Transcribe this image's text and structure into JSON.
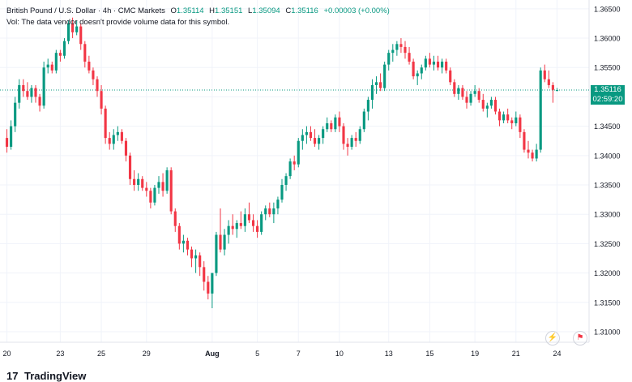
{
  "header": {
    "symbol": "British Pound / U.S. Dollar · 4h · CMC Markets",
    "ohlc": [
      {
        "key": "O",
        "value": "1.35114"
      },
      {
        "key": "H",
        "value": "1.35151"
      },
      {
        "key": "L",
        "value": "1.35094"
      },
      {
        "key": "C",
        "value": "1.35116"
      }
    ],
    "change": "+0.00003 (+0.00%)",
    "volume_note": "Vol: The data vendor doesn't provide volume data for this symbol."
  },
  "price_tag": {
    "price": "1.35116",
    "countdown": "02:59:20"
  },
  "logo": {
    "text": "TradingView",
    "mark": "17"
  },
  "colors": {
    "up": "#089981",
    "down": "#f23645",
    "grid": "#f0f3fa",
    "axis_text": "#131722"
  },
  "chart_data": {
    "type": "candlestick",
    "ylim": [
      1.3082,
      1.3665
    ],
    "yticks": [
      "1.36500",
      "1.36000",
      "1.35500",
      "1.35000",
      "1.34500",
      "1.34000",
      "1.33500",
      "1.33000",
      "1.32500",
      "1.32000",
      "1.31500",
      "1.31000"
    ],
    "xticks": [
      {
        "label": "20",
        "index": 0
      },
      {
        "label": "23",
        "index": 13
      },
      {
        "label": "25",
        "index": 23
      },
      {
        "label": "29",
        "index": 34
      },
      {
        "label": "Aug",
        "index": 50
      },
      {
        "label": "5",
        "index": 61
      },
      {
        "label": "7",
        "index": 71
      },
      {
        "label": "10",
        "index": 81
      },
      {
        "label": "13",
        "index": 93
      },
      {
        "label": "15",
        "index": 103
      },
      {
        "label": "19",
        "index": 114
      },
      {
        "label": "21",
        "index": 124
      },
      {
        "label": "24",
        "index": 134
      }
    ],
    "last_price": 1.35116,
    "candles": [
      [
        1.343,
        1.3445,
        1.3405,
        1.3415
      ],
      [
        1.3415,
        1.346,
        1.341,
        1.345
      ],
      [
        1.345,
        1.35,
        1.344,
        1.349
      ],
      [
        1.349,
        1.353,
        1.348,
        1.352
      ],
      [
        1.352,
        1.353,
        1.35,
        1.351
      ],
      [
        1.351,
        1.3525,
        1.3495,
        1.35
      ],
      [
        1.35,
        1.352,
        1.349,
        1.3515
      ],
      [
        1.3515,
        1.352,
        1.349,
        1.35
      ],
      [
        1.35,
        1.3505,
        1.3475,
        1.3485
      ],
      [
        1.3485,
        1.356,
        1.348,
        1.355
      ],
      [
        1.355,
        1.3565,
        1.354,
        1.3555
      ],
      [
        1.3555,
        1.356,
        1.354,
        1.3545
      ],
      [
        1.3545,
        1.358,
        1.354,
        1.3575
      ],
      [
        1.3575,
        1.358,
        1.356,
        1.357
      ],
      [
        1.357,
        1.36,
        1.3565,
        1.3595
      ],
      [
        1.3595,
        1.363,
        1.359,
        1.3625
      ],
      [
        1.3625,
        1.3635,
        1.36,
        1.361
      ],
      [
        1.361,
        1.363,
        1.3605,
        1.362
      ],
      [
        1.362,
        1.3625,
        1.358,
        1.359
      ],
      [
        1.359,
        1.3595,
        1.355,
        1.356
      ],
      [
        1.356,
        1.357,
        1.354,
        1.3545
      ],
      [
        1.3545,
        1.355,
        1.352,
        1.353
      ],
      [
        1.353,
        1.3535,
        1.35,
        1.351
      ],
      [
        1.351,
        1.352,
        1.347,
        1.348
      ],
      [
        1.348,
        1.3485,
        1.342,
        1.343
      ],
      [
        1.343,
        1.344,
        1.341,
        1.342
      ],
      [
        1.342,
        1.3445,
        1.341,
        1.3435
      ],
      [
        1.3435,
        1.345,
        1.3425,
        1.344
      ],
      [
        1.344,
        1.3445,
        1.342,
        1.3425
      ],
      [
        1.3425,
        1.343,
        1.339,
        1.34
      ],
      [
        1.34,
        1.3405,
        1.335,
        1.336
      ],
      [
        1.336,
        1.3375,
        1.334,
        1.335
      ],
      [
        1.335,
        1.337,
        1.334,
        1.336
      ],
      [
        1.336,
        1.3365,
        1.334,
        1.3345
      ],
      [
        1.3345,
        1.3355,
        1.333,
        1.334
      ],
      [
        1.334,
        1.3345,
        1.331,
        1.332
      ],
      [
        1.332,
        1.335,
        1.3315,
        1.3345
      ],
      [
        1.3345,
        1.3365,
        1.3335,
        1.3355
      ],
      [
        1.3355,
        1.337,
        1.333,
        1.334
      ],
      [
        1.334,
        1.338,
        1.3335,
        1.3375
      ],
      [
        1.3375,
        1.338,
        1.33,
        1.3305
      ],
      [
        1.3305,
        1.331,
        1.327,
        1.328
      ],
      [
        1.328,
        1.3285,
        1.324,
        1.325
      ],
      [
        1.325,
        1.3265,
        1.3235,
        1.3255
      ],
      [
        1.3255,
        1.326,
        1.323,
        1.324
      ],
      [
        1.324,
        1.3245,
        1.321,
        1.3225
      ],
      [
        1.3225,
        1.324,
        1.32,
        1.323
      ],
      [
        1.323,
        1.3235,
        1.3195,
        1.321
      ],
      [
        1.321,
        1.322,
        1.317,
        1.3185
      ],
      [
        1.3185,
        1.3195,
        1.3155,
        1.3165
      ],
      [
        1.3165,
        1.3195,
        1.314,
        1.32
      ],
      [
        1.32,
        1.327,
        1.3195,
        1.3265
      ],
      [
        1.3265,
        1.331,
        1.3235,
        1.324
      ],
      [
        1.324,
        1.3275,
        1.323,
        1.3265
      ],
      [
        1.3265,
        1.329,
        1.325,
        1.328
      ],
      [
        1.328,
        1.33,
        1.3265,
        1.3275
      ],
      [
        1.3275,
        1.329,
        1.326,
        1.3285
      ],
      [
        1.3285,
        1.3305,
        1.3275,
        1.328
      ],
      [
        1.328,
        1.331,
        1.327,
        1.33
      ],
      [
        1.33,
        1.332,
        1.3285,
        1.329
      ],
      [
        1.329,
        1.33,
        1.327,
        1.328
      ],
      [
        1.328,
        1.329,
        1.326,
        1.327
      ],
      [
        1.327,
        1.3305,
        1.3265,
        1.33
      ],
      [
        1.33,
        1.3315,
        1.329,
        1.331
      ],
      [
        1.331,
        1.332,
        1.3295,
        1.33
      ],
      [
        1.33,
        1.332,
        1.3285,
        1.331
      ],
      [
        1.331,
        1.333,
        1.33,
        1.3325
      ],
      [
        1.3325,
        1.336,
        1.332,
        1.335
      ],
      [
        1.335,
        1.337,
        1.334,
        1.3365
      ],
      [
        1.3365,
        1.3395,
        1.336,
        1.339
      ],
      [
        1.339,
        1.34,
        1.3375,
        1.3385
      ],
      [
        1.3385,
        1.343,
        1.338,
        1.3425
      ],
      [
        1.3425,
        1.3445,
        1.341,
        1.3435
      ],
      [
        1.3435,
        1.345,
        1.342,
        1.344
      ],
      [
        1.344,
        1.345,
        1.3425,
        1.343
      ],
      [
        1.343,
        1.3445,
        1.3415,
        1.342
      ],
      [
        1.342,
        1.3435,
        1.341,
        1.343
      ],
      [
        1.343,
        1.345,
        1.342,
        1.3445
      ],
      [
        1.3445,
        1.3465,
        1.344,
        1.3455
      ],
      [
        1.3455,
        1.346,
        1.344,
        1.3445
      ],
      [
        1.3445,
        1.347,
        1.344,
        1.3465
      ],
      [
        1.3465,
        1.3475,
        1.344,
        1.345
      ],
      [
        1.345,
        1.3455,
        1.341,
        1.342
      ],
      [
        1.342,
        1.343,
        1.34,
        1.3415
      ],
      [
        1.3415,
        1.3435,
        1.341,
        1.343
      ],
      [
        1.343,
        1.344,
        1.3415,
        1.3425
      ],
      [
        1.3425,
        1.345,
        1.342,
        1.3445
      ],
      [
        1.3445,
        1.348,
        1.344,
        1.3475
      ],
      [
        1.3475,
        1.35,
        1.346,
        1.3495
      ],
      [
        1.3495,
        1.353,
        1.348,
        1.352
      ],
      [
        1.352,
        1.3535,
        1.3505,
        1.3525
      ],
      [
        1.3525,
        1.354,
        1.351,
        1.3515
      ],
      [
        1.3515,
        1.356,
        1.351,
        1.3555
      ],
      [
        1.3555,
        1.358,
        1.3545,
        1.3575
      ],
      [
        1.3575,
        1.359,
        1.356,
        1.358
      ],
      [
        1.358,
        1.3595,
        1.357,
        1.359
      ],
      [
        1.359,
        1.36,
        1.3575,
        1.3585
      ],
      [
        1.3585,
        1.3595,
        1.3565,
        1.3575
      ],
      [
        1.3575,
        1.3585,
        1.3555,
        1.356
      ],
      [
        1.356,
        1.3565,
        1.353,
        1.3535
      ],
      [
        1.3535,
        1.3545,
        1.352,
        1.354
      ],
      [
        1.354,
        1.3555,
        1.353,
        1.355
      ],
      [
        1.355,
        1.357,
        1.3545,
        1.3565
      ],
      [
        1.3565,
        1.3575,
        1.355,
        1.3555
      ],
      [
        1.3555,
        1.357,
        1.3545,
        1.356
      ],
      [
        1.356,
        1.357,
        1.3545,
        1.355
      ],
      [
        1.355,
        1.3565,
        1.354,
        1.356
      ],
      [
        1.356,
        1.3565,
        1.354,
        1.3545
      ],
      [
        1.3545,
        1.355,
        1.352,
        1.3525
      ],
      [
        1.3525,
        1.353,
        1.35,
        1.3505
      ],
      [
        1.3505,
        1.352,
        1.3495,
        1.3515
      ],
      [
        1.3515,
        1.352,
        1.3495,
        1.35
      ],
      [
        1.35,
        1.351,
        1.348,
        1.349
      ],
      [
        1.349,
        1.351,
        1.3485,
        1.3505
      ],
      [
        1.3505,
        1.352,
        1.35,
        1.351
      ],
      [
        1.351,
        1.3515,
        1.349,
        1.3495
      ],
      [
        1.3495,
        1.3505,
        1.3475,
        1.348
      ],
      [
        1.348,
        1.349,
        1.3465,
        1.3485
      ],
      [
        1.3485,
        1.35,
        1.348,
        1.3495
      ],
      [
        1.3495,
        1.35,
        1.347,
        1.3475
      ],
      [
        1.3475,
        1.348,
        1.345,
        1.346
      ],
      [
        1.346,
        1.3475,
        1.3455,
        1.347
      ],
      [
        1.347,
        1.348,
        1.3455,
        1.346
      ],
      [
        1.346,
        1.3465,
        1.3445,
        1.3455
      ],
      [
        1.3455,
        1.3475,
        1.345,
        1.3465
      ],
      [
        1.3465,
        1.347,
        1.343,
        1.344
      ],
      [
        1.344,
        1.3445,
        1.3405,
        1.341
      ],
      [
        1.341,
        1.3425,
        1.3395,
        1.3405
      ],
      [
        1.3405,
        1.341,
        1.339,
        1.3395
      ],
      [
        1.3395,
        1.342,
        1.339,
        1.341
      ],
      [
        1.341,
        1.355,
        1.3405,
        1.3545
      ],
      [
        1.3545,
        1.3555,
        1.3525,
        1.353
      ],
      [
        1.353,
        1.3545,
        1.3515,
        1.352
      ],
      [
        1.352,
        1.3525,
        1.349,
        1.3512
      ],
      [
        1.35114,
        1.35151,
        1.35094,
        1.35116
      ]
    ]
  }
}
